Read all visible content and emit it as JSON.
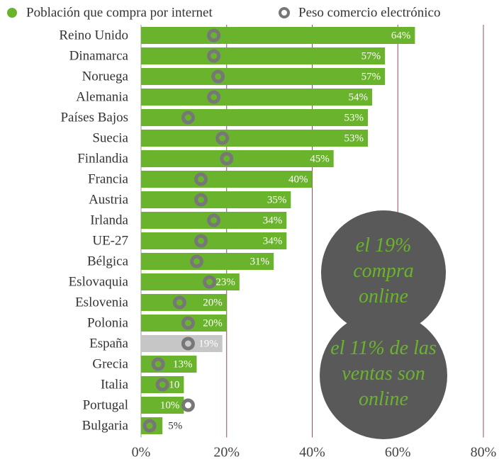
{
  "chart_data": {
    "type": "bar",
    "orientation": "horizontal",
    "categories": [
      "Reino Unido",
      "Dinamarca",
      "Noruega",
      "Alemania",
      "Países Bajos",
      "Suecia",
      "Finlandia",
      "Francia",
      "Austria",
      "Irlanda",
      "UE-27",
      "Bélgica",
      "Eslovaquia",
      "Eslovenia",
      "Polonia",
      "España",
      "Grecia",
      "Italia",
      "Portugal",
      "Bulgaria"
    ],
    "series": [
      {
        "name": "Población que compra por internet",
        "color": "#6ab42d",
        "colors": [
          "#6ab42d",
          "#6ab42d",
          "#6ab42d",
          "#6ab42d",
          "#6ab42d",
          "#6ab42d",
          "#6ab42d",
          "#6ab42d",
          "#6ab42d",
          "#6ab42d",
          "#6ab42d",
          "#6ab42d",
          "#6ab42d",
          "#6ab42d",
          "#6ab42d",
          "#c6c6c6",
          "#6ab42d",
          "#6ab42d",
          "#6ab42d",
          "#6ab42d"
        ],
        "values": [
          64,
          57,
          57,
          54,
          53,
          53,
          45,
          40,
          35,
          34,
          34,
          31,
          23,
          20,
          20,
          19,
          13,
          10,
          10,
          5
        ],
        "value_labels": [
          "64%",
          "57%",
          "57%",
          "54%",
          "53%",
          "53%",
          "45%",
          "40%",
          "35%",
          "34%",
          "34%",
          "31%",
          "23%",
          "20%",
          "20%",
          "19%",
          "13%",
          "10",
          "10%",
          "5%"
        ]
      },
      {
        "name": "Peso comercio electrónico",
        "color": "#777777",
        "marker": "ring",
        "values": [
          17,
          17,
          18,
          17,
          11,
          19,
          20,
          14,
          14,
          17,
          14,
          13,
          16,
          9,
          11,
          11,
          4,
          5,
          11,
          2
        ]
      }
    ],
    "xlim": [
      0,
      80
    ],
    "xticks": [
      {
        "value": 0,
        "label": "0%"
      },
      {
        "value": 20,
        "label": "20%"
      },
      {
        "value": 40,
        "label": "40%"
      },
      {
        "value": 60,
        "label": "60%"
      },
      {
        "value": 80,
        "label": "80%"
      }
    ],
    "grid": true,
    "annotations": [
      "el 19% compra online",
      "el 11% de las ventas son online"
    ]
  }
}
